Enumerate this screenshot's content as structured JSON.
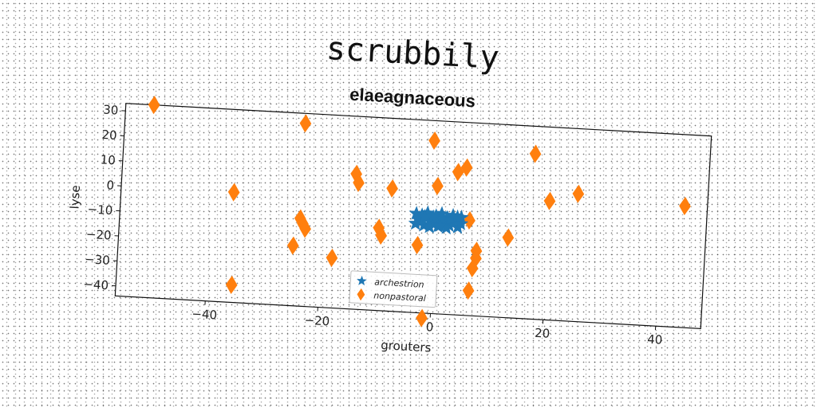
{
  "chart_data": {
    "type": "scatter",
    "title": "scrubbily",
    "subtitle": "elaeagnaceous",
    "xlabel": "grouters",
    "ylabel": "lyse",
    "xlim": [
      -56,
      48
    ],
    "ylim": [
      -44,
      33
    ],
    "xticks": [
      -40,
      -20,
      0,
      20,
      40
    ],
    "yticks": [
      30,
      20,
      10,
      0,
      -10,
      -20,
      -30,
      -40
    ],
    "xtick_labels": [
      "−40",
      "−20",
      "0",
      "20",
      "40"
    ],
    "ytick_labels": [
      "30",
      "20",
      "10",
      "0",
      "−10",
      "−20",
      "−30",
      "−40"
    ],
    "legend_position": "lower center",
    "grid": false,
    "series": [
      {
        "name": "archestrion",
        "marker": "star",
        "color": "#1f77b4",
        "points": [
          [
            -3.5,
            -4.5
          ],
          [
            -3,
            -7
          ],
          [
            -2.5,
            -5
          ],
          [
            -2,
            -9
          ],
          [
            -1.5,
            -4
          ],
          [
            -1,
            -6.5
          ],
          [
            -0.5,
            -8
          ],
          [
            0,
            -5
          ],
          [
            0.5,
            -9
          ],
          [
            1,
            -4
          ],
          [
            1.5,
            -7
          ],
          [
            2,
            -5.5
          ],
          [
            2.5,
            -8.5
          ],
          [
            3,
            -4.5
          ],
          [
            3.5,
            -6.5
          ],
          [
            4,
            -9
          ],
          [
            4.5,
            -5
          ],
          [
            -3.5,
            -8.5
          ],
          [
            -2.5,
            -7.5
          ],
          [
            -1,
            -9.5
          ],
          [
            0,
            -7
          ],
          [
            1,
            -6
          ],
          [
            2,
            -9.5
          ],
          [
            3,
            -7.5
          ],
          [
            4.5,
            -7.5
          ],
          [
            -2,
            -5.5
          ],
          [
            -0.5,
            -5.5
          ],
          [
            0.8,
            -8.8
          ],
          [
            2.8,
            -6
          ],
          [
            3.8,
            -5
          ]
        ]
      },
      {
        "name": "nonpastoral",
        "marker": "thin_diamond",
        "color": "#ff7f0e",
        "points": [
          [
            -51,
            33
          ],
          [
            -24,
            29
          ],
          [
            -1,
            25
          ],
          [
            17,
            22
          ],
          [
            5,
            15
          ],
          [
            3.5,
            13
          ],
          [
            -14.5,
            10
          ],
          [
            -14,
            6.5
          ],
          [
            -8,
            5
          ],
          [
            0,
            7
          ],
          [
            -36,
            0
          ],
          [
            20,
            3.5
          ],
          [
            25,
            7
          ],
          [
            44,
            4.5
          ],
          [
            -24,
            -9
          ],
          [
            -23.5,
            -11
          ],
          [
            -23,
            -13
          ],
          [
            -10,
            -11
          ],
          [
            -9.5,
            -14
          ],
          [
            6,
            -6
          ],
          [
            13,
            -12
          ],
          [
            -3,
            -17
          ],
          [
            7.5,
            -18
          ],
          [
            7.5,
            -21
          ],
          [
            -25,
            -20
          ],
          [
            -18,
            -24
          ],
          [
            7,
            -25
          ],
          [
            6.5,
            -34
          ],
          [
            -35.5,
            -37
          ],
          [
            -1.5,
            -46
          ]
        ]
      }
    ]
  }
}
